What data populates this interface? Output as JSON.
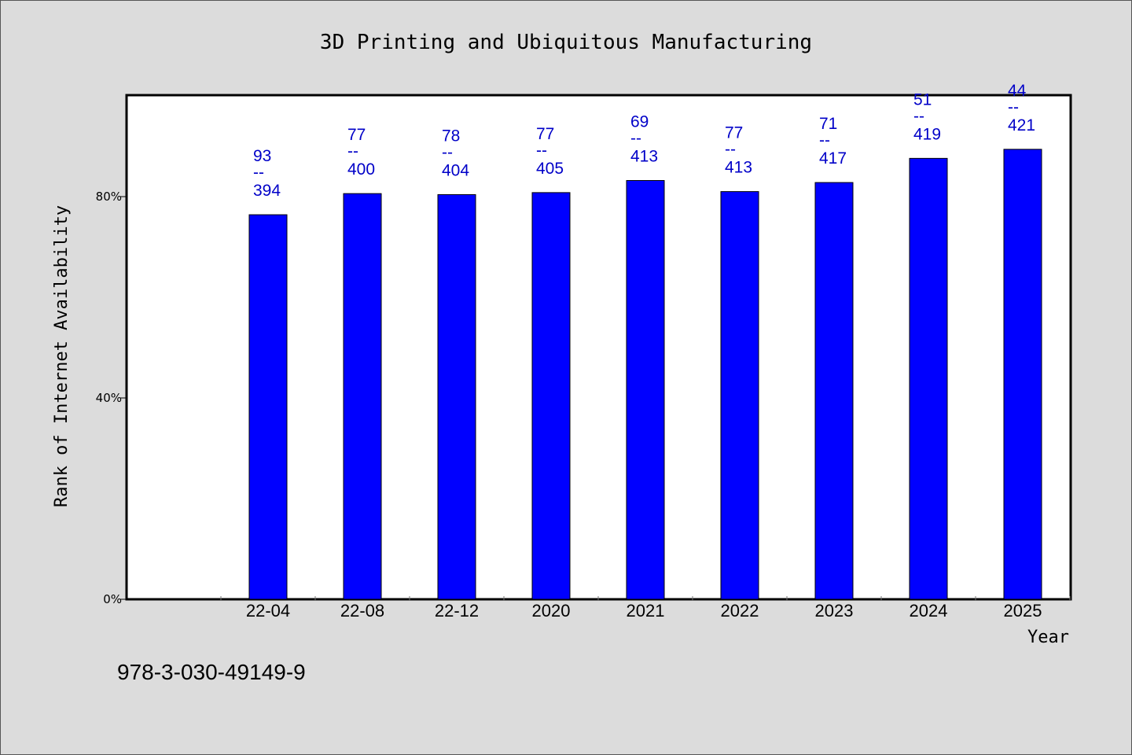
{
  "chart_data": {
    "type": "bar",
    "title": "3D Printing and Ubiquitous Manufacturing",
    "xlabel": "Year",
    "ylabel": "Rank of Internet Availability",
    "categories": [
      "22-04",
      "22-08",
      "22-12",
      "2020",
      "2021",
      "2022",
      "2023",
      "2024",
      "2025"
    ],
    "values": [
      76.4,
      80.6,
      80.4,
      80.8,
      83.2,
      81.0,
      82.8,
      87.6,
      89.4
    ],
    "labels_top": [
      "93",
      "77",
      "78",
      "77",
      "69",
      "77",
      "71",
      "51",
      "44"
    ],
    "labels_sep": "--",
    "labels_bottom": [
      "394",
      "400",
      "404",
      "405",
      "413",
      "413",
      "417",
      "419",
      "421"
    ],
    "yticks": [
      0,
      40,
      80
    ],
    "ytick_labels": [
      "0%",
      "40%",
      "80%"
    ],
    "ylim": [
      0,
      100
    ],
    "bar_color": "#0000ff",
    "label_color": "#0000c8",
    "grid": false,
    "legend": "none"
  },
  "footer": "978-3-030-49149-9"
}
